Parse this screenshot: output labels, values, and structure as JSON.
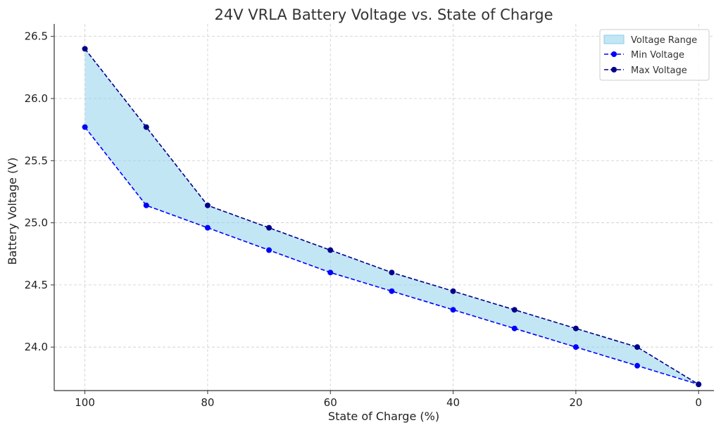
{
  "chart_data": {
    "type": "line",
    "title": "24V VRLA Battery Voltage vs. State of Charge",
    "xlabel": "State of Charge (%)",
    "ylabel": "Battery Voltage (V)",
    "x": [
      100,
      90,
      80,
      70,
      60,
      50,
      40,
      30,
      20,
      10,
      0
    ],
    "xlim": [
      105,
      -2.5
    ],
    "x_reversed": true,
    "ylim": [
      23.65,
      26.6
    ],
    "xticks": [
      100,
      80,
      60,
      40,
      20,
      0
    ],
    "xtick_labels": [
      "100",
      "80",
      "60",
      "40",
      "20",
      "0"
    ],
    "yticks": [
      24.0,
      24.5,
      25.0,
      25.5,
      26.0,
      26.5
    ],
    "ytick_labels": [
      "24.0",
      "24.5",
      "25.0",
      "25.5",
      "26.0",
      "26.5"
    ],
    "grid": true,
    "legend_position": "top-right",
    "fill": {
      "name": "Voltage Range",
      "between": [
        "Min Voltage",
        "Max Voltage"
      ],
      "color": "#87ceeb"
    },
    "series": [
      {
        "name": "Min Voltage",
        "values": [
          25.77,
          25.14,
          24.96,
          24.78,
          24.6,
          24.45,
          24.3,
          24.15,
          24.0,
          23.85,
          23.7
        ],
        "color": "#0000ff",
        "linestyle": "dashed",
        "marker": "circle"
      },
      {
        "name": "Max Voltage",
        "values": [
          26.4,
          25.77,
          25.14,
          24.96,
          24.78,
          24.6,
          24.45,
          24.3,
          24.15,
          24.0,
          23.7
        ],
        "color": "#00008b",
        "linestyle": "dashed",
        "marker": "circle"
      }
    ]
  }
}
